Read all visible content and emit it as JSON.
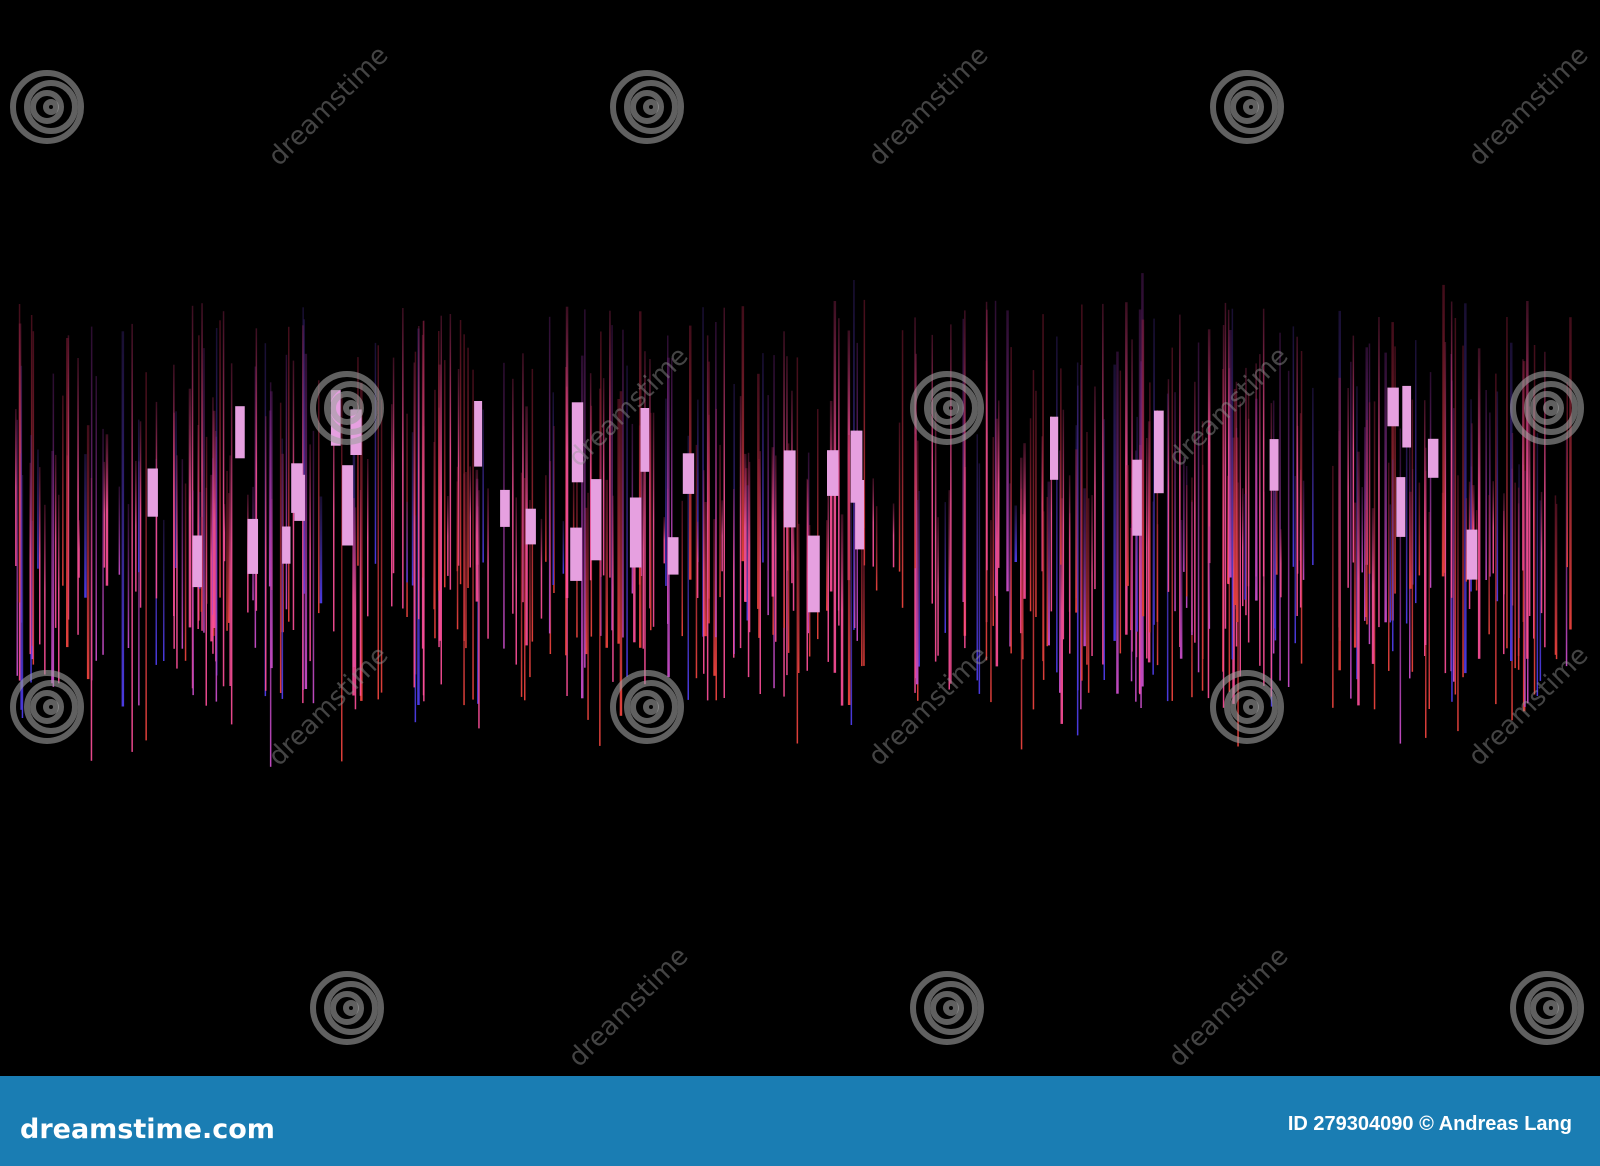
{
  "watermark": "dreamstime",
  "footer": {
    "logo": "dreamstime.com",
    "credit": "ID 279304090 © Andreas Lang"
  }
}
